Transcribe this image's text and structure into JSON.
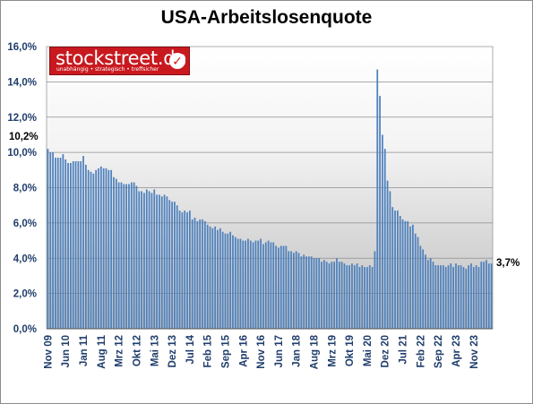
{
  "chart_data": {
    "type": "bar",
    "title": "USA-Arbeitslosenquote",
    "y_ticks": [
      "0,0%",
      "2,0%",
      "4,0%",
      "6,0%",
      "8,0%",
      "10,0%",
      "12,0%",
      "14,0%",
      "16,0%"
    ],
    "ylim": [
      0,
      16
    ],
    "x_tick_labels": [
      "Nov 09",
      "Jun 10",
      "Jan 11",
      "Aug 11",
      "Mrz 12",
      "Okt 12",
      "Mai 13",
      "Dez 13",
      "Jul 14",
      "Feb 15",
      "Sep 15",
      "Apr 16",
      "Nov 16",
      "Jun 17",
      "Jan 18",
      "Aug 18",
      "Mrz 19",
      "Okt 19",
      "Mai 20",
      "Dez 20",
      "Jul 21",
      "Feb 22",
      "Sep 22",
      "Apr 23",
      "Nov 23"
    ],
    "start_annotation": "10,2%",
    "end_annotation": "3,7%",
    "grid": true,
    "values": [
      10.2,
      10.0,
      10.0,
      9.7,
      9.7,
      9.7,
      9.9,
      9.6,
      9.4,
      9.4,
      9.5,
      9.5,
      9.5,
      9.5,
      9.8,
      9.3,
      9.0,
      8.9,
      8.8,
      9.0,
      9.1,
      9.2,
      9.1,
      9.1,
      9.0,
      9.0,
      8.6,
      8.5,
      8.3,
      8.3,
      8.2,
      8.2,
      8.2,
      8.3,
      8.3,
      8.1,
      7.8,
      7.8,
      7.7,
      7.9,
      7.8,
      7.7,
      7.9,
      7.6,
      7.6,
      7.5,
      7.6,
      7.5,
      7.3,
      7.2,
      7.2,
      7.0,
      6.7,
      6.6,
      6.7,
      6.6,
      6.7,
      6.2,
      6.3,
      6.1,
      6.2,
      6.2,
      6.1,
      5.9,
      5.8,
      5.7,
      5.8,
      5.6,
      5.7,
      5.5,
      5.4,
      5.4,
      5.5,
      5.3,
      5.2,
      5.1,
      5.1,
      5.0,
      5.0,
      5.1,
      5.0,
      4.9,
      5.0,
      5.0,
      5.1,
      4.8,
      4.9,
      5.0,
      4.9,
      4.9,
      4.7,
      4.6,
      4.7,
      4.7,
      4.7,
      4.4,
      4.4,
      4.3,
      4.4,
      4.3,
      4.1,
      4.2,
      4.1,
      4.1,
      4.1,
      4.0,
      4.0,
      4.0,
      3.8,
      3.9,
      3.8,
      3.7,
      3.8,
      3.8,
      4.0,
      3.8,
      3.8,
      3.7,
      3.6,
      3.6,
      3.7,
      3.6,
      3.7,
      3.5,
      3.6,
      3.5,
      3.5,
      3.6,
      3.5,
      4.4,
      14.7,
      13.2,
      11.0,
      10.2,
      8.4,
      7.8,
      6.9,
      6.7,
      6.7,
      6.4,
      6.2,
      6.1,
      6.1,
      5.8,
      5.9,
      5.4,
      5.2,
      4.7,
      4.5,
      4.2,
      3.9,
      4.0,
      3.8,
      3.6,
      3.6,
      3.6,
      3.6,
      3.5,
      3.6,
      3.7,
      3.5,
      3.7,
      3.6,
      3.6,
      3.5,
      3.4,
      3.6,
      3.7,
      3.5,
      3.6,
      3.5,
      3.8,
      3.8,
      3.9,
      3.7,
      3.7
    ]
  }
}
